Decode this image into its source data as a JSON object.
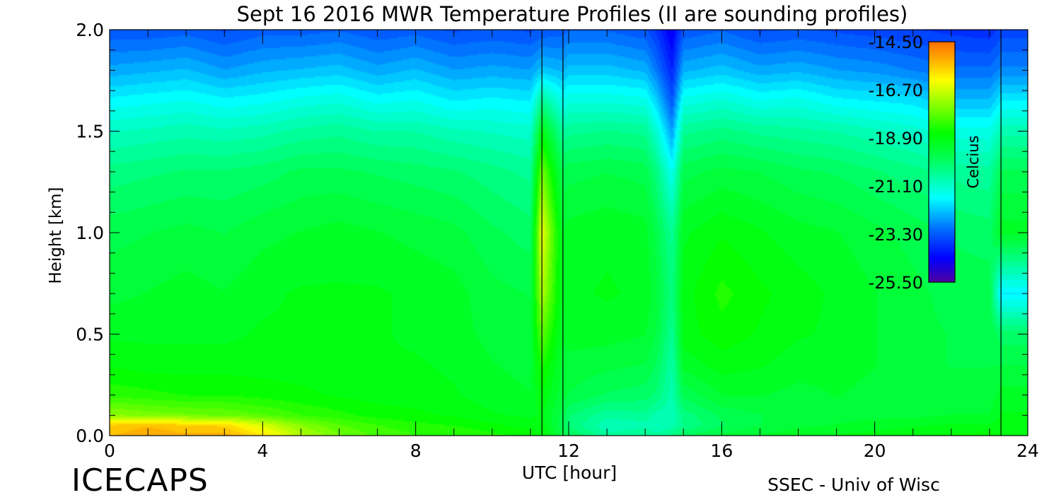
{
  "chart_data": {
    "type": "heatmap",
    "title": "Sept 16 2016 MWR Temperature Profiles (II are sounding profiles)",
    "xlabel": "UTC [hour]",
    "ylabel": "Height [km]",
    "xlim": [
      0,
      24
    ],
    "ylim": [
      0.0,
      2.0
    ],
    "xticks": [
      "0",
      "4",
      "8",
      "12",
      "16",
      "20",
      "24"
    ],
    "yticks": [
      "0.0",
      "0.5",
      "1.0",
      "1.5",
      "2.0"
    ],
    "colorbar": {
      "label": "Celcius",
      "ticks": [
        "-14.50",
        "-16.70",
        "-18.90",
        "-21.10",
        "-23.30",
        "-25.50"
      ],
      "range": [
        -25.5,
        -14.5
      ]
    },
    "sounding_profiles_utc": [
      11.3,
      23.3
    ],
    "profile_times_utc": [
      0,
      1,
      2,
      3,
      4,
      5,
      6,
      7,
      8,
      9,
      10,
      11,
      11.3,
      11.85,
      12,
      13,
      14,
      14.3,
      14.7,
      15,
      16,
      17,
      18,
      19,
      20,
      21,
      22,
      23,
      23.3,
      24
    ],
    "heights_km": [
      0.0,
      0.05,
      0.1,
      0.2,
      0.35,
      0.5,
      0.7,
      1.0,
      1.3,
      1.5,
      1.65,
      1.8,
      2.0
    ],
    "temperature_c": [
      [
        -15.5,
        -15.7,
        -17.3,
        -18.3,
        -18.8,
        -19.1,
        -19.4,
        -19.7,
        -20.3,
        -21.0,
        -21.7,
        -22.5,
        -23.4
      ],
      [
        -15.2,
        -15.5,
        -17.5,
        -18.4,
        -18.9,
        -19.1,
        -19.3,
        -19.6,
        -20.2,
        -20.9,
        -21.6,
        -22.4,
        -23.4
      ],
      [
        -15.4,
        -15.7,
        -17.6,
        -18.5,
        -18.9,
        -19.1,
        -19.2,
        -19.5,
        -20.1,
        -20.8,
        -21.5,
        -22.3,
        -23.3
      ],
      [
        -15.3,
        -15.8,
        -17.7,
        -18.5,
        -18.9,
        -19.1,
        -19.3,
        -19.6,
        -20.1,
        -20.9,
        -21.7,
        -22.6,
        -23.5
      ],
      [
        -16.0,
        -16.6,
        -17.9,
        -18.6,
        -18.9,
        -19.0,
        -19.1,
        -19.4,
        -20.0,
        -20.8,
        -21.6,
        -22.4,
        -23.3
      ],
      [
        -17.0,
        -17.4,
        -18.2,
        -18.7,
        -18.9,
        -19.0,
        -19.0,
        -19.3,
        -19.8,
        -20.6,
        -21.4,
        -22.3,
        -23.3
      ],
      [
        -17.6,
        -17.9,
        -18.4,
        -18.8,
        -18.9,
        -19.0,
        -19.0,
        -19.2,
        -19.8,
        -20.5,
        -21.3,
        -22.2,
        -23.2
      ],
      [
        -18.0,
        -18.2,
        -18.6,
        -18.9,
        -19.0,
        -19.0,
        -19.0,
        -19.3,
        -19.9,
        -20.7,
        -21.6,
        -22.5,
        -23.4
      ],
      [
        -18.2,
        -18.4,
        -18.7,
        -18.9,
        -19.0,
        -19.1,
        -19.1,
        -19.4,
        -20.0,
        -20.7,
        -21.5,
        -22.3,
        -23.3
      ],
      [
        -18.2,
        -18.5,
        -18.8,
        -19.0,
        -19.1,
        -19.2,
        -19.2,
        -19.5,
        -20.1,
        -20.9,
        -21.8,
        -22.6,
        -23.5
      ],
      [
        -18.4,
        -18.7,
        -19.0,
        -19.2,
        -19.3,
        -19.4,
        -19.5,
        -19.8,
        -20.3,
        -21.0,
        -21.7,
        -22.5,
        -23.4
      ],
      [
        -18.6,
        -18.9,
        -19.1,
        -19.3,
        -19.4,
        -19.5,
        -19.6,
        -20.0,
        -20.5,
        -21.1,
        -21.8,
        -22.6,
        -23.5
      ],
      [
        -18.7,
        -18.9,
        -19.0,
        -18.8,
        -18.4,
        -17.8,
        -17.0,
        -16.4,
        -17.6,
        -19.0,
        -20.5,
        -22.2,
        -23.4
      ],
      [
        -19.6,
        -19.8,
        -19.7,
        -19.5,
        -19.4,
        -19.3,
        -19.2,
        -19.3,
        -19.8,
        -20.6,
        -21.5,
        -22.4,
        -23.3
      ],
      [
        -19.8,
        -20.2,
        -20.1,
        -19.6,
        -19.4,
        -19.2,
        -19.1,
        -19.2,
        -19.7,
        -20.5,
        -21.3,
        -22.2,
        -23.2
      ],
      [
        -20.6,
        -20.9,
        -20.6,
        -19.9,
        -19.5,
        -19.2,
        -19.0,
        -19.1,
        -19.6,
        -20.4,
        -21.3,
        -22.2,
        -23.2
      ],
      [
        -20.4,
        -20.8,
        -20.5,
        -20.0,
        -19.6,
        -19.3,
        -19.1,
        -19.2,
        -19.7,
        -20.5,
        -21.4,
        -22.4,
        -23.4
      ],
      [
        -20.6,
        -21.0,
        -20.8,
        -20.2,
        -19.9,
        -19.6,
        -19.5,
        -19.7,
        -20.3,
        -21.2,
        -22.1,
        -23.0,
        -23.8
      ],
      [
        -20.3,
        -20.8,
        -20.9,
        -20.8,
        -20.7,
        -20.5,
        -20.3,
        -20.5,
        -21.5,
        -22.6,
        -23.4,
        -24.0,
        -24.6
      ],
      [
        -19.9,
        -20.4,
        -20.3,
        -19.8,
        -19.2,
        -18.9,
        -18.9,
        -19.1,
        -19.7,
        -20.5,
        -21.4,
        -22.4,
        -23.4
      ],
      [
        -19.5,
        -19.9,
        -19.8,
        -19.3,
        -18.9,
        -18.6,
        -18.4,
        -18.8,
        -19.5,
        -20.3,
        -21.2,
        -22.2,
        -23.2
      ],
      [
        -19.3,
        -19.6,
        -19.6,
        -19.3,
        -19.0,
        -18.8,
        -18.7,
        -19.0,
        -19.6,
        -20.5,
        -21.5,
        -22.5,
        -23.5
      ],
      [
        -19.1,
        -19.4,
        -19.5,
        -19.4,
        -19.2,
        -19.0,
        -18.9,
        -19.2,
        -19.8,
        -20.6,
        -21.4,
        -22.4,
        -23.4
      ],
      [
        -19.0,
        -19.3,
        -19.4,
        -19.3,
        -19.2,
        -19.1,
        -19.1,
        -19.3,
        -19.9,
        -20.7,
        -21.7,
        -22.6,
        -23.5
      ],
      [
        -18.9,
        -19.2,
        -19.4,
        -19.4,
        -19.3,
        -19.3,
        -19.3,
        -19.5,
        -20.1,
        -20.9,
        -21.8,
        -22.7,
        -23.6
      ],
      [
        -18.8,
        -19.1,
        -19.4,
        -19.5,
        -19.5,
        -19.5,
        -19.5,
        -19.7,
        -20.3,
        -21.1,
        -21.9,
        -22.9,
        -23.7
      ],
      [
        -18.7,
        -19.0,
        -19.3,
        -19.5,
        -19.6,
        -19.6,
        -19.7,
        -19.9,
        -20.5,
        -21.4,
        -22.3,
        -23.1,
        -23.8
      ],
      [
        -18.6,
        -19.0,
        -19.3,
        -19.5,
        -19.6,
        -19.6,
        -19.7,
        -20.0,
        -20.6,
        -21.4,
        -22.3,
        -23.1,
        -23.9
      ],
      [
        -18.8,
        -18.9,
        -19.0,
        -19.2,
        -19.6,
        -20.0,
        -21.8,
        -19.2,
        -19.8,
        -20.8,
        -21.8,
        -22.8,
        -23.6
      ],
      [
        -18.8,
        -18.9,
        -19.0,
        -19.2,
        -19.6,
        -20.0,
        -21.8,
        -19.2,
        -19.8,
        -20.8,
        -21.8,
        -22.8,
        -23.6
      ]
    ]
  },
  "footer": {
    "project": "ICECAPS",
    "credit": "SSEC - Univ of Wisc"
  }
}
